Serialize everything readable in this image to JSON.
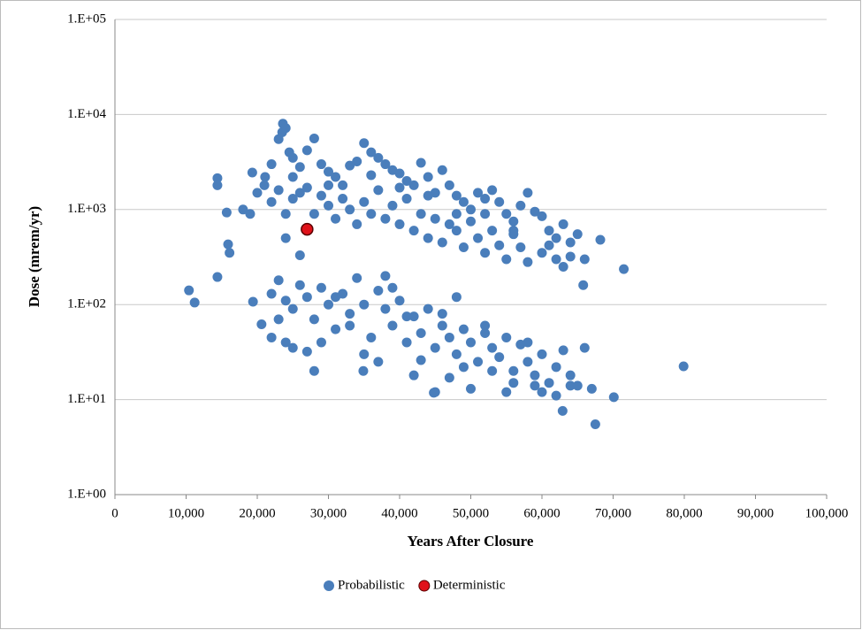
{
  "chart_data": {
    "type": "scatter",
    "x_label": "Years After Closure",
    "y_label": "Dose (mrem/yr)",
    "log_y": true,
    "grid": true,
    "legend": "bottom",
    "xlim": [
      0,
      100000
    ],
    "ylim": [
      1,
      100000
    ],
    "xticks": [
      0,
      {
        "value": 10000,
        "label": "10,000"
      },
      {
        "value": 20000,
        "label": "20,000"
      },
      {
        "value": 30000,
        "label": "30,000"
      },
      {
        "value": 40000,
        "label": "40,000"
      },
      {
        "value": 50000,
        "label": "50,000"
      },
      {
        "value": 60000,
        "label": "60,000"
      },
      {
        "value": 70000,
        "label": "70,000"
      },
      {
        "value": 80000,
        "label": "80,000"
      },
      {
        "value": 90000,
        "label": "90,000"
      },
      {
        "value": 100000,
        "label": "100,000"
      }
    ],
    "yticks": [
      {
        "value": 1,
        "label": "1.E+00"
      },
      {
        "value": 10,
        "label": "1.E+01"
      },
      {
        "value": 100,
        "label": "1.E+02"
      },
      {
        "value": 1000,
        "label": "1.E+03"
      },
      {
        "value": 10000,
        "label": "1.E+04"
      },
      {
        "value": 100000,
        "label": "1.E+05"
      }
    ],
    "series": [
      {
        "name": "Probabilistic",
        "color": "#4a7ebb",
        "x": [
          10400,
          11200,
          14400,
          14400,
          14400,
          15700,
          15900,
          16100,
          71500,
          68200,
          79900,
          70100,
          67500,
          62900,
          65800,
          20600,
          19400,
          28000,
          23600,
          34900,
          44800,
          19300,
          18000,
          21100,
          22000,
          23000,
          23500,
          24000,
          24500,
          25000,
          26000,
          27000,
          28000,
          29000,
          30000,
          31000,
          32000,
          33000,
          34000,
          35000,
          36000,
          37000,
          38000,
          39000,
          40000,
          41000,
          42000,
          43000,
          44000,
          45000,
          46000,
          47000,
          48000,
          49000,
          50000,
          51000,
          52000,
          53000,
          54000,
          55000,
          56000,
          57000,
          58000,
          59000,
          60000,
          61000,
          62000,
          63000,
          64000,
          65000,
          22000,
          23000,
          24000,
          25000,
          26000,
          27000,
          28000,
          29000,
          30000,
          31000,
          32000,
          33000,
          34000,
          35000,
          36000,
          37000,
          38000,
          39000,
          40000,
          41000,
          42000,
          43000,
          44000,
          45000,
          46000,
          47000,
          48000,
          49000,
          50000,
          51000,
          52000,
          53000,
          54000,
          55000,
          56000,
          57000,
          58000,
          60000,
          61000,
          62000,
          63000,
          64000,
          66000,
          26000,
          24000,
          20000,
          21000,
          19000,
          25000,
          30000,
          36000,
          40000,
          44000,
          48000,
          52000,
          56000,
          22000,
          23000,
          24000,
          25000,
          26000,
          27000,
          28000,
          29000,
          30000,
          31000,
          32000,
          33000,
          34000,
          35000,
          36000,
          37000,
          38000,
          39000,
          40000,
          41000,
          42000,
          43000,
          44000,
          45000,
          46000,
          47000,
          48000,
          49000,
          50000,
          51000,
          52000,
          53000,
          54000,
          55000,
          56000,
          57000,
          58000,
          59000,
          60000,
          61000,
          62000,
          63000,
          64000,
          65000,
          66000,
          67000,
          22000,
          23000,
          24000,
          25000,
          27000,
          29000,
          31000,
          33000,
          35000,
          37000,
          38000,
          39000,
          41000,
          42000,
          43000,
          45000,
          46000,
          47000,
          48000,
          49000,
          50000,
          52000,
          53000,
          55000,
          56000,
          58000,
          59000,
          60000,
          62000,
          64000
        ],
        "values": [
          141,
          105,
          2140,
          1800,
          195,
          930,
          430,
          350,
          236,
          480,
          22.4,
          10.6,
          5.5,
          7.6,
          160,
          62,
          107,
          20,
          8000,
          20,
          11.8,
          2450,
          1000,
          2200,
          3000,
          5500,
          6500,
          7200,
          4000,
          3500,
          2800,
          4200,
          5600,
          3000,
          2500,
          2200,
          1800,
          2900,
          3200,
          5000,
          4000,
          3500,
          3000,
          2600,
          2400,
          2000,
          1800,
          3100,
          2200,
          1500,
          2600,
          1800,
          1400,
          1200,
          1000,
          1500,
          1300,
          1600,
          1200,
          900,
          750,
          1100,
          1500,
          950,
          850,
          600,
          500,
          700,
          450,
          550,
          1200,
          1600,
          900,
          1300,
          1500,
          1700,
          900,
          1400,
          1100,
          800,
          1300,
          1000,
          700,
          1200,
          900,
          1600,
          800,
          1100,
          700,
          1300,
          600,
          900,
          500,
          800,
          450,
          700,
          600,
          400,
          750,
          500,
          350,
          600,
          420,
          300,
          550,
          400,
          280,
          350,
          420,
          300,
          250,
          320,
          300,
          330,
          500,
          1500,
          1800,
          900,
          2200,
          1800,
          2300,
          1700,
          1400,
          900,
          900,
          600,
          130,
          180,
          110,
          90,
          160,
          120,
          70,
          150,
          100,
          55,
          130,
          80,
          190,
          100,
          45,
          140,
          90,
          60,
          110,
          40,
          75,
          50,
          90,
          35,
          60,
          45,
          30,
          55,
          40,
          25,
          50,
          35,
          28,
          45,
          20,
          38,
          25,
          18,
          30,
          15,
          22,
          33,
          18,
          14,
          35,
          13,
          45,
          70,
          40,
          35,
          32,
          40,
          120,
          60,
          30,
          25,
          200,
          150,
          75,
          18,
          26,
          12,
          80,
          17,
          120,
          22,
          13,
          60,
          20,
          12,
          15,
          40,
          14,
          12,
          11,
          14
        ]
      },
      {
        "name": "Deterministic",
        "color": "#e0121a",
        "x": [
          27000
        ],
        "values": [
          620
        ]
      }
    ]
  }
}
